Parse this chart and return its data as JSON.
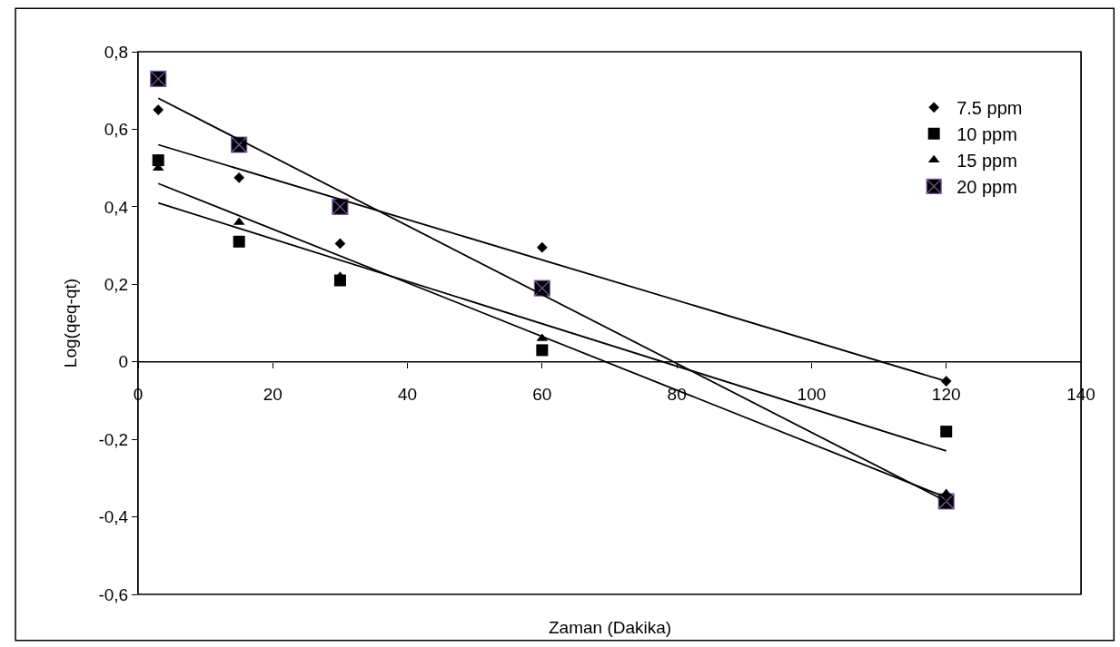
{
  "chart_data": {
    "type": "scatter",
    "xlabel": "Zaman (Dakika)",
    "ylabel": "Log(qeq-qt)",
    "xlim": [
      0,
      140
    ],
    "xticks": [
      0,
      20,
      40,
      60,
      80,
      100,
      120,
      140
    ],
    "ylim": [
      -0.6,
      0.8
    ],
    "yticks": [
      {
        "value": -0.6,
        "label": "-0,6"
      },
      {
        "value": -0.4,
        "label": "-0,4"
      },
      {
        "value": -0.2,
        "label": "-0,2"
      },
      {
        "value": 0,
        "label": "0"
      },
      {
        "value": 0.2,
        "label": "0,2"
      },
      {
        "value": 0.4,
        "label": "0,4"
      },
      {
        "value": 0.6,
        "label": "0,6"
      },
      {
        "value": 0.8,
        "label": "0,8"
      }
    ],
    "grid": false,
    "legend": "top right",
    "series": [
      {
        "name": "7.5 ppm",
        "color": "#000000",
        "marker": "diamond",
        "x": [
          3,
          15,
          30,
          60,
          120
        ],
        "values": [
          0.65,
          0.475,
          0.305,
          0.295,
          -0.05
        ]
      },
      {
        "name": "10 ppm",
        "color": "#000000",
        "marker": "square",
        "x": [
          3,
          15,
          30,
          60,
          120
        ],
        "values": [
          0.52,
          0.31,
          0.21,
          0.03,
          -0.18
        ]
      },
      {
        "name": "15 ppm",
        "color": "#000000",
        "marker": "triangle",
        "x": [
          3,
          15,
          30,
          60,
          120
        ],
        "values": [
          0.5,
          0.36,
          0.22,
          0.06,
          -0.34
        ]
      },
      {
        "name": "20 ppm",
        "color": "#000000",
        "marker": "cross",
        "x": [
          3,
          15,
          30,
          60,
          120
        ],
        "values": [
          0.73,
          0.56,
          0.4,
          0.19,
          -0.36
        ]
      },
      {
        "type": "line",
        "color": "#000000",
        "marker": "none",
        "x": [
          3,
          120
        ],
        "values": [
          0.56,
          -0.05
        ]
      },
      {
        "type": "line",
        "color": "#000000",
        "marker": "none",
        "x": [
          3,
          120
        ],
        "values": [
          0.41,
          -0.23
        ]
      },
      {
        "type": "line",
        "color": "#000000",
        "marker": "none",
        "x": [
          3,
          120
        ],
        "values": [
          0.46,
          -0.35
        ]
      },
      {
        "type": "line",
        "color": "#000000",
        "marker": "none",
        "x": [
          3,
          120
        ],
        "values": [
          0.68,
          -0.36
        ]
      }
    ]
  }
}
